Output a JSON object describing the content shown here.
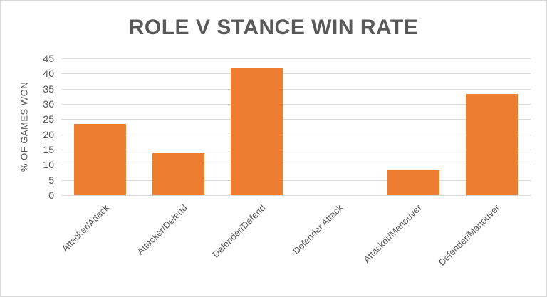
{
  "chart_data": {
    "type": "bar",
    "title": "ROLE V STANCE WIN RATE",
    "xlabel": "",
    "ylabel": "% OF GAMES WON",
    "categories": [
      "Attacker/Attack",
      "Attacker/Defend",
      "Defender/Defend",
      "Defender Attack",
      "Attacker/Manouver",
      "Defender/Manouver"
    ],
    "values": [
      23.4,
      13.9,
      41.7,
      0,
      8.3,
      33.3
    ],
    "ylim": [
      0,
      45
    ],
    "yticks": [
      "0",
      "5",
      "10",
      "15",
      "20",
      "25",
      "30",
      "35",
      "40",
      "45"
    ],
    "grid": true,
    "legend": "none",
    "bar_color": "#ed7d31"
  }
}
